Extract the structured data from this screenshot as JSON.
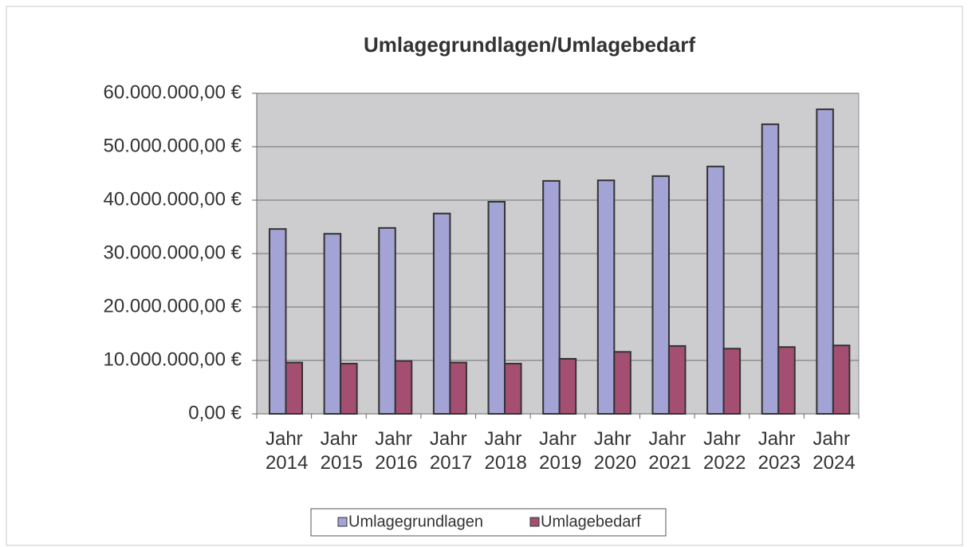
{
  "chart_data": {
    "type": "bar",
    "title": "Umlagegrundlagen/Umlagebedarf",
    "categories": [
      "Jahr 2014",
      "Jahr 2015",
      "Jahr 2016",
      "Jahr 2017",
      "Jahr 2018",
      "Jahr 2019",
      "Jahr 2020",
      "Jahr 2021",
      "Jahr 2022",
      "Jahr 2023",
      "Jahr 2024"
    ],
    "series": [
      {
        "name": "Umlagegrundlagen",
        "color": "#a3a3d6",
        "values": [
          34600000,
          33700000,
          34800000,
          37500000,
          39700000,
          43600000,
          43700000,
          44500000,
          46300000,
          54200000,
          57000000
        ]
      },
      {
        "name": "Umlagebedarf",
        "color": "#a44f72",
        "values": [
          9600000,
          9400000,
          9900000,
          9600000,
          9400000,
          10300000,
          11600000,
          12700000,
          12200000,
          12500000,
          12800000
        ]
      }
    ],
    "ylim": [
      0,
      60000000
    ],
    "yticks": [
      {
        "value": 0,
        "label": "0,00 €"
      },
      {
        "value": 10000000,
        "label": "10.000.000,00 €"
      },
      {
        "value": 20000000,
        "label": "20.000.000,00 €"
      },
      {
        "value": 30000000,
        "label": "30.000.000,00 €"
      },
      {
        "value": 40000000,
        "label": "40.000.000,00 €"
      },
      {
        "value": 50000000,
        "label": "50.000.000,00 €"
      },
      {
        "value": 60000000,
        "label": "60.000.000,00 €"
      }
    ],
    "grid": true,
    "legend": "bottom"
  }
}
